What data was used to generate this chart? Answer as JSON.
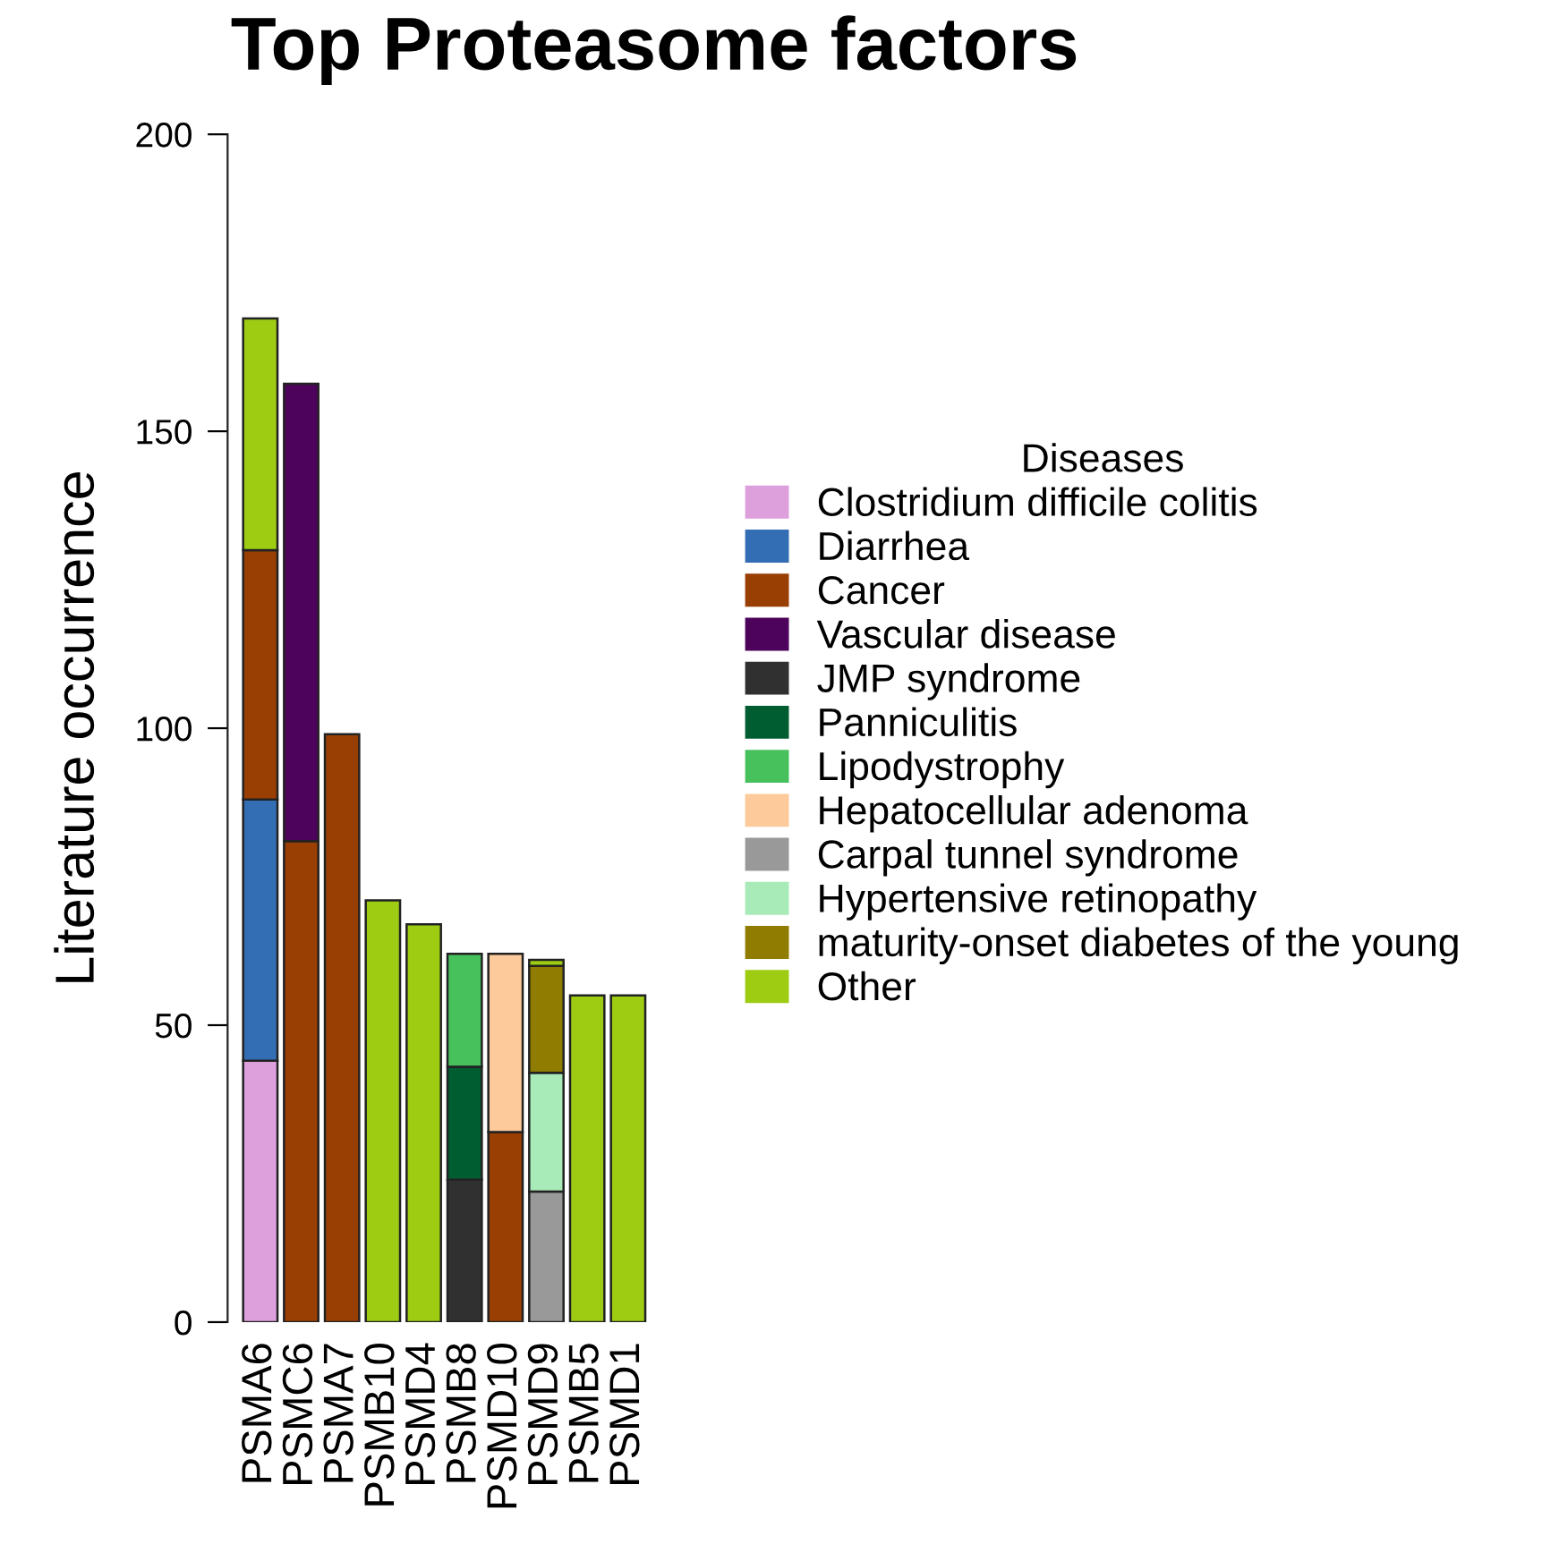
{
  "chart_data": {
    "type": "bar",
    "title": "Top Proteasome factors",
    "ylabel": "Literature occurrence",
    "legend_title": "Diseases",
    "categories": [
      "PSMA6",
      "PSMC6",
      "PSMA7",
      "PSMB10",
      "PSMD4",
      "PSMB8",
      "PSMD10",
      "PSMD9",
      "PSMB5",
      "PSMD1"
    ],
    "stacked": true,
    "ylim": [
      0,
      200
    ],
    "yticks": [
      0,
      50,
      100,
      150,
      200
    ],
    "grid": false,
    "legend": "right",
    "series": [
      {
        "name": "Clostridium difficile colitis",
        "color": "#dda0dd",
        "values": [
          44,
          null,
          null,
          null,
          null,
          null,
          null,
          null,
          null,
          null
        ]
      },
      {
        "name": "Diarrhea",
        "color": "#336eb4",
        "values": [
          44,
          null,
          null,
          null,
          null,
          null,
          null,
          null,
          null,
          null
        ]
      },
      {
        "name": "Cancer",
        "color": "#993f04",
        "values": [
          42,
          81,
          99,
          null,
          null,
          null,
          32,
          null,
          null,
          null
        ]
      },
      {
        "name": "Vascular disease",
        "color": "#4d035b",
        "values": [
          null,
          77,
          null,
          null,
          null,
          null,
          null,
          null,
          null,
          null
        ]
      },
      {
        "name": "JMP syndrome",
        "color": "#303030",
        "values": [
          null,
          null,
          null,
          null,
          null,
          24,
          null,
          null,
          null,
          null
        ]
      },
      {
        "name": "Panniculitis",
        "color": "#005c31",
        "values": [
          null,
          null,
          null,
          null,
          null,
          19,
          null,
          null,
          null,
          null
        ]
      },
      {
        "name": "Lipodystrophy",
        "color": "#47c15c",
        "values": [
          null,
          null,
          null,
          null,
          null,
          19,
          null,
          null,
          null,
          null
        ]
      },
      {
        "name": "Hepatocellular adenoma",
        "color": "#fdcb9b",
        "values": [
          null,
          null,
          null,
          null,
          null,
          null,
          30,
          null,
          null,
          null
        ]
      },
      {
        "name": "Carpal tunnel syndrome",
        "color": "#999999",
        "values": [
          null,
          null,
          null,
          null,
          null,
          null,
          null,
          22,
          null,
          null
        ]
      },
      {
        "name": "Hypertensive retinopathy",
        "color": "#a8ebb8",
        "values": [
          null,
          null,
          null,
          null,
          null,
          null,
          null,
          20,
          null,
          null
        ]
      },
      {
        "name": "maturity-onset diabetes of the young",
        "color": "#8f7c00",
        "values": [
          null,
          null,
          null,
          null,
          null,
          null,
          null,
          18,
          null,
          null
        ]
      },
      {
        "name": "Other",
        "color": "#9dcc13",
        "values": [
          39,
          null,
          null,
          71,
          67,
          null,
          null,
          1,
          55,
          55
        ]
      }
    ]
  }
}
